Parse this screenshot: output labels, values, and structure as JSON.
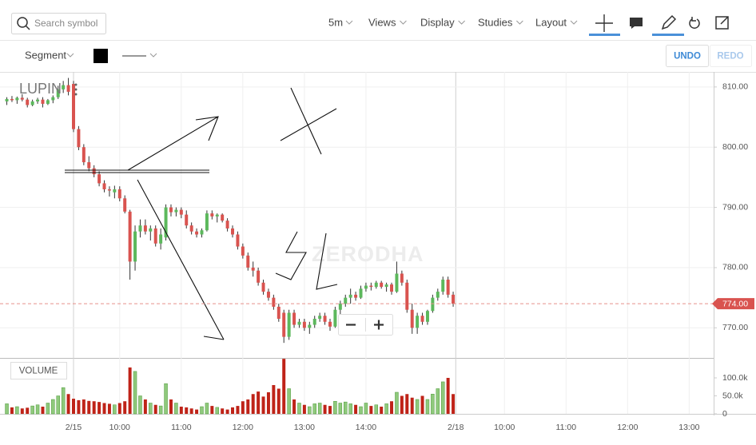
{
  "toolbar": {
    "search_placeholder": "Search symbol",
    "interval": "5m",
    "menus": [
      "Views",
      "Display",
      "Studies",
      "Layout"
    ],
    "segment": "Segment",
    "undo": "UNDO",
    "redo": "REDO"
  },
  "chart_data": {
    "type": "candlestick",
    "title": "LUPIN",
    "watermark": "ZERODHA",
    "up_color": "#5cb85c",
    "down_color": "#d9534f",
    "x": [
      -13,
      -12,
      -11,
      -10,
      -9,
      -8,
      -7,
      -6,
      -5,
      -4,
      -3,
      -2,
      -1,
      0,
      1,
      2,
      3,
      4,
      5,
      6,
      7,
      8,
      9,
      10,
      11,
      12,
      13,
      14,
      15,
      16,
      17,
      18,
      19,
      20,
      21,
      22,
      23,
      24,
      25,
      26,
      27,
      28,
      29,
      30,
      31,
      32,
      33,
      34,
      35,
      36,
      37,
      38,
      39,
      40,
      41,
      42,
      43,
      44,
      45,
      46,
      47,
      48,
      49,
      50,
      51,
      52,
      53,
      54,
      55,
      56,
      57,
      58,
      59,
      60,
      61,
      62,
      63,
      64,
      65,
      66,
      67,
      68,
      69,
      70,
      71,
      72,
      73,
      74
    ],
    "open": [
      807.6,
      808.0,
      807.8,
      808.2,
      807.9,
      807.0,
      807.6,
      807.9,
      807.2,
      807.8,
      808.3,
      809.6,
      810.3,
      810.5,
      803.0,
      800.0,
      797.5,
      796.5,
      795.5,
      794.0,
      793.0,
      792.5,
      793.0,
      791.5,
      789.3,
      781.0,
      786.0,
      787.0,
      786.0,
      786.5,
      784.0,
      785.0,
      790.0,
      789.2,
      789.6,
      788.8,
      787.0,
      786.0,
      785.5,
      786.2,
      789.0,
      788.5,
      788.8,
      787.8,
      786.5,
      785.5,
      783.5,
      782.0,
      780.0,
      779.5,
      777.5,
      776.0,
      775.0,
      773.5,
      772.5,
      768.5,
      772.5,
      770.5,
      771.0,
      770.0,
      770.5,
      771.5,
      772.0,
      771.0,
      770.2,
      773.0,
      774.0,
      775.0,
      775.5,
      775.0,
      776.5,
      777.0,
      776.8,
      777.5,
      776.8,
      777.2,
      776.0,
      779.0,
      777.5,
      773.0,
      770.0,
      772.0,
      771.0,
      772.8,
      775.0,
      776.0,
      778.0,
      775.5
    ],
    "high": [
      808.3,
      808.5,
      808.4,
      808.8,
      808.2,
      807.9,
      808.2,
      808.3,
      808.0,
      808.6,
      810.2,
      811.0,
      811.5,
      811.0,
      803.5,
      800.5,
      798.5,
      797.0,
      796.0,
      794.5,
      793.5,
      793.6,
      793.5,
      792.0,
      789.6,
      787.0,
      788.0,
      788.0,
      787.0,
      787.0,
      786.5,
      790.5,
      790.5,
      790.0,
      790.0,
      789.5,
      787.5,
      786.5,
      786.5,
      789.5,
      789.5,
      789.0,
      789.0,
      788.2,
      787.0,
      786.0,
      784.0,
      782.5,
      781.0,
      780.0,
      778.0,
      776.5,
      775.5,
      774.0,
      773.0,
      773.0,
      773.0,
      771.5,
      771.5,
      771.0,
      772.0,
      772.5,
      772.5,
      771.5,
      773.5,
      774.5,
      775.5,
      776.5,
      776.0,
      777.0,
      777.5,
      777.5,
      777.8,
      777.8,
      777.5,
      777.5,
      781.0,
      779.5,
      778.0,
      774.0,
      772.5,
      772.5,
      773.0,
      775.5,
      776.5,
      778.5,
      778.5,
      776.0
    ],
    "low": [
      807.0,
      807.5,
      807.2,
      807.6,
      806.6,
      806.8,
      807.2,
      806.6,
      807.0,
      807.3,
      808.0,
      809.0,
      808.6,
      802.5,
      799.5,
      797.0,
      796.0,
      795.0,
      793.5,
      792.5,
      791.8,
      791.5,
      791.0,
      789.0,
      778.0,
      779.5,
      785.0,
      785.5,
      784.5,
      783.5,
      783.0,
      784.5,
      788.5,
      788.5,
      788.2,
      786.5,
      785.5,
      785.0,
      785.0,
      786.0,
      788.0,
      787.5,
      787.5,
      786.0,
      785.0,
      783.0,
      781.5,
      779.5,
      778.5,
      777.0,
      775.5,
      774.5,
      773.0,
      771.0,
      767.5,
      768.0,
      770.0,
      770.0,
      769.5,
      769.0,
      770.0,
      771.0,
      770.5,
      769.5,
      770.0,
      772.0,
      773.5,
      774.0,
      774.5,
      774.8,
      776.0,
      776.2,
      776.5,
      776.5,
      776.0,
      775.5,
      775.8,
      777.0,
      772.5,
      769.0,
      769.0,
      770.5,
      770.5,
      772.5,
      774.5,
      775.5,
      775.0,
      773.5
    ],
    "close": [
      808.0,
      807.8,
      808.2,
      807.9,
      807.0,
      807.6,
      807.9,
      807.2,
      807.8,
      808.3,
      809.6,
      810.3,
      809.2,
      803.0,
      800.0,
      797.5,
      796.5,
      795.5,
      794.0,
      793.0,
      792.8,
      793.0,
      791.5,
      789.3,
      781.0,
      786.0,
      787.0,
      786.0,
      786.5,
      784.0,
      785.5,
      790.0,
      789.2,
      789.6,
      788.8,
      787.0,
      786.0,
      785.5,
      786.2,
      789.0,
      788.5,
      788.8,
      787.8,
      786.5,
      785.5,
      783.5,
      782.0,
      780.0,
      779.5,
      777.5,
      776.0,
      775.0,
      773.5,
      771.5,
      768.5,
      772.5,
      770.5,
      771.0,
      770.0,
      770.5,
      771.5,
      772.0,
      771.0,
      770.2,
      773.0,
      774.0,
      775.0,
      775.5,
      775.0,
      776.5,
      777.0,
      776.8,
      777.5,
      776.8,
      777.2,
      776.0,
      779.0,
      777.5,
      773.0,
      770.0,
      772.0,
      771.0,
      772.8,
      775.0,
      776.0,
      778.0,
      775.5,
      774.0
    ],
    "xlim": [
      -14.33,
      124.77
    ],
    "xticks": [
      {
        "value": 0,
        "label": "2/15"
      },
      {
        "value": 9,
        "label": "10:00"
      },
      {
        "value": 21,
        "label": "11:00"
      },
      {
        "value": 33,
        "label": "12:00"
      },
      {
        "value": 45,
        "label": "13:00"
      },
      {
        "value": 57,
        "label": "14:00"
      },
      {
        "value": 74.5,
        "label": "2/18"
      },
      {
        "value": 84,
        "label": "10:00"
      },
      {
        "value": 96,
        "label": "11:00"
      },
      {
        "value": 108,
        "label": "12:00"
      },
      {
        "value": 120,
        "label": "13:00"
      }
    ],
    "ylim": [
      765,
      812.5
    ],
    "yticks": [
      {
        "value": 770,
        "label": "770.00"
      },
      {
        "value": 780,
        "label": "780.00"
      },
      {
        "value": 790,
        "label": "790.00"
      },
      {
        "value": 800,
        "label": "800.00"
      },
      {
        "value": 810,
        "label": "810.00"
      }
    ],
    "last_price": {
      "value": 774,
      "label": "774.00"
    },
    "volume": {
      "title": "VOLUME",
      "up_color": "#8fc97c",
      "down_color": "#bf2318",
      "values": [
        28000,
        18000,
        20000,
        15000,
        17000,
        22000,
        25000,
        20000,
        30000,
        40000,
        50000,
        73000,
        55000,
        42000,
        38000,
        40000,
        36000,
        35000,
        33000,
        30000,
        28000,
        25000,
        30000,
        35000,
        129000,
        118000,
        50000,
        40000,
        30000,
        25000,
        22000,
        84000,
        40000,
        30000,
        20000,
        18000,
        15000,
        12000,
        20000,
        30000,
        22000,
        18000,
        15000,
        12000,
        18000,
        22000,
        35000,
        40000,
        55000,
        62000,
        48000,
        60000,
        80000,
        70000,
        153000,
        70000,
        40000,
        30000,
        25000,
        20000,
        28000,
        30000,
        25000,
        22000,
        35000,
        30000,
        33000,
        28000,
        25000,
        20000,
        30000,
        22000,
        25000,
        20000,
        28000,
        35000,
        60000,
        50000,
        55000,
        45000,
        40000,
        50000,
        40000,
        55000,
        70000,
        89000,
        100000,
        55000
      ],
      "ylim": [
        0,
        155500
      ],
      "yticks": [
        0,
        {
          "value": 50000,
          "label": "50.0k"
        },
        {
          "value": 100000,
          "label": "100.0k"
        }
      ]
    }
  }
}
